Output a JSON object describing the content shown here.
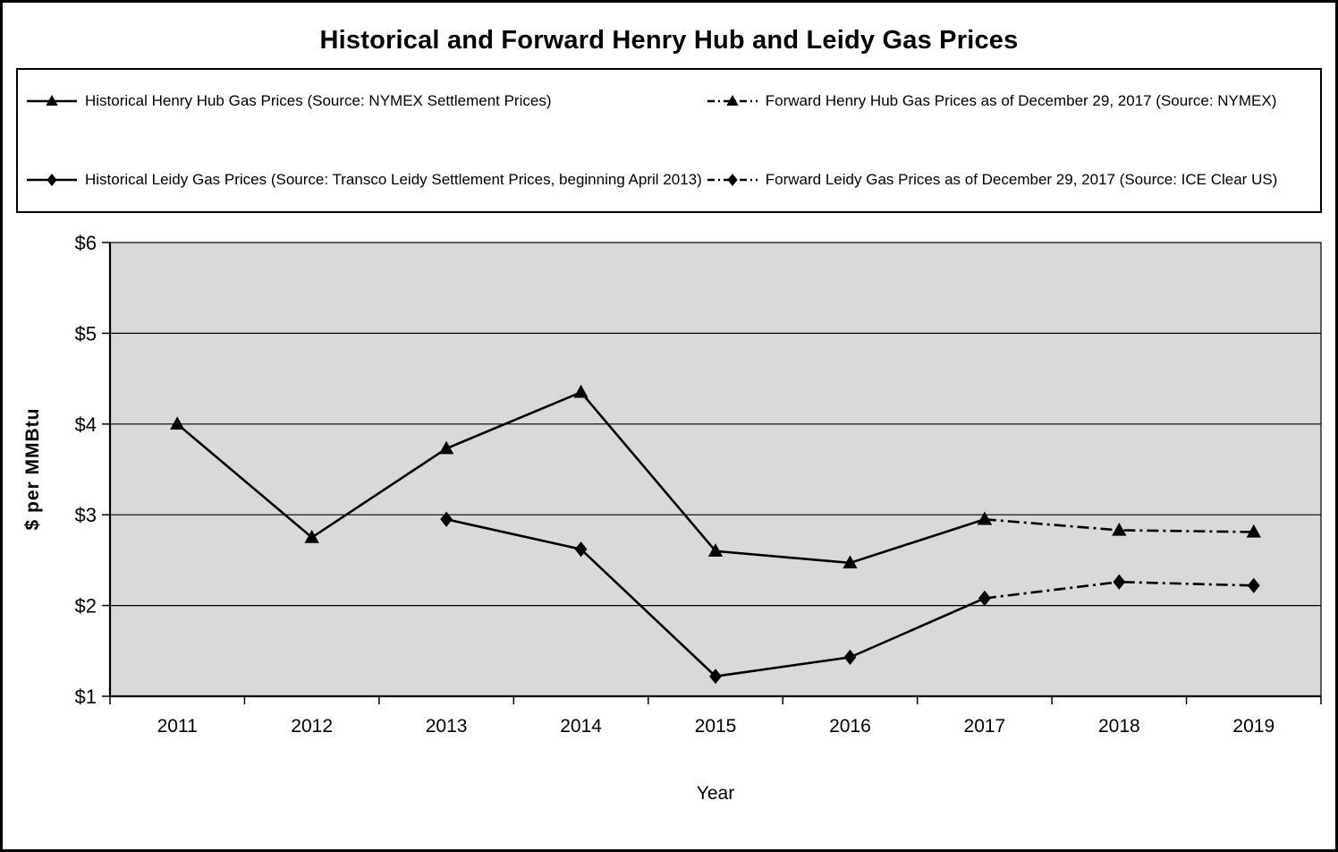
{
  "chart_data": {
    "type": "line",
    "title": "Historical and Forward Henry Hub and Leidy Gas Prices",
    "xlabel": "Year",
    "ylabel": "$ per MMBtu",
    "categories": [
      "2011",
      "2012",
      "2013",
      "2014",
      "2015",
      "2016",
      "2017",
      "2018",
      "2019"
    ],
    "ylim": [
      1,
      6
    ],
    "ytick_labels": [
      "$1",
      "$2",
      "$3",
      "$4",
      "$5",
      "$6"
    ],
    "grid": true,
    "legend_position": "top",
    "plot_bg": "#d9d9d9",
    "line_color": "#000000",
    "series": [
      {
        "name": "Historical Henry Hub Gas Prices (Source: NYMEX Settlement Prices)",
        "marker": "triangle",
        "line": "solid",
        "x": [
          "2011",
          "2012",
          "2013",
          "2014",
          "2015",
          "2016",
          "2017"
        ],
        "values": [
          4.0,
          2.75,
          3.73,
          4.35,
          2.6,
          2.47,
          2.95
        ]
      },
      {
        "name": "Forward Henry Hub Gas Prices as of December 29, 2017 (Source: NYMEX)",
        "marker": "triangle",
        "line": "dashed",
        "x": [
          "2017",
          "2018",
          "2019"
        ],
        "values": [
          2.95,
          2.83,
          2.81
        ]
      },
      {
        "name": "Historical Leidy Gas Prices (Source: Transco Leidy Settlement Prices, beginning April 2013)",
        "marker": "diamond",
        "line": "solid",
        "x": [
          "2013",
          "2014",
          "2015",
          "2016",
          "2017"
        ],
        "values": [
          2.95,
          2.62,
          1.22,
          1.43,
          2.08
        ]
      },
      {
        "name": "Forward Leidy Gas Prices as of December 29, 2017 (Source: ICE Clear US)",
        "marker": "diamond",
        "line": "dashed",
        "x": [
          "2017",
          "2018",
          "2019"
        ],
        "values": [
          2.08,
          2.26,
          2.22
        ]
      }
    ]
  }
}
